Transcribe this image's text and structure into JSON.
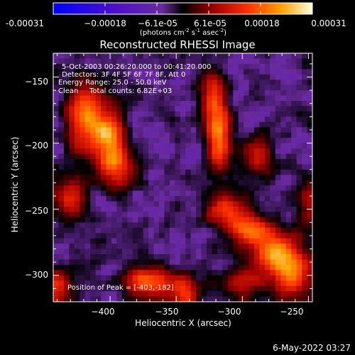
{
  "chart_data": {
    "type": "heatmap",
    "title": "Reconstructed RHESSI Image",
    "xlabel": "Heliocentric X (arcsec)",
    "ylabel": "Heliocentric Y (arcsec)",
    "xlim": [
      -443,
      -247
    ],
    "ylim": [
      -320,
      -132
    ],
    "xticks": [
      -400,
      -350,
      -300,
      -250
    ],
    "yticks": [
      -150,
      -200,
      -250,
      -300
    ],
    "xtick_labels": [
      "−400",
      "−350",
      "−300",
      "−250"
    ],
    "ytick_labels": [
      "−150",
      "−200",
      "−250",
      "−300"
    ],
    "colorbar": {
      "min": -0.00031,
      "max": 0.00031,
      "tick_labels": [
        "-0.00031",
        "−0.00018",
        "−6.1e-05",
        "6.1e-05",
        "0.00018",
        "0.00031"
      ],
      "units_label": "(photons cm",
      "units_exp1": "-2",
      "units_mid": " s",
      "units_exp2": "-1",
      "units_mid2": " asec",
      "units_exp3": "-2",
      "units_end": ")"
    },
    "annotations": {
      "line1": "5-Oct-2003 00:26:20.000 to 00:41:20.000",
      "line2": "Detectors: 3F 4F 5F 6F 7F 8F, Att 0",
      "line3": "Energy Range: 25.0 - 50.0 keV",
      "line4_a": "Clean",
      "line4_b": "Total counts: 6.82E+03",
      "peak": "Position of Peak = [-403,-182]"
    },
    "features": [
      {
        "x": -418,
        "y": -180,
        "amp": 0.00026,
        "sx": 10,
        "sy": 18
      },
      {
        "x": -400,
        "y": -195,
        "amp": 0.00028,
        "sx": 7,
        "sy": 12
      },
      {
        "x": -395,
        "y": -220,
        "amp": 0.00022,
        "sx": 9,
        "sy": 10
      },
      {
        "x": -430,
        "y": -240,
        "amp": 0.00016,
        "sx": 8,
        "sy": 12
      },
      {
        "x": -438,
        "y": -310,
        "amp": 0.0002,
        "sx": 6,
        "sy": 10
      },
      {
        "x": -370,
        "y": -305,
        "amp": 0.00024,
        "sx": 14,
        "sy": 8
      },
      {
        "x": -342,
        "y": -312,
        "amp": 0.00018,
        "sx": 8,
        "sy": 8
      },
      {
        "x": -318,
        "y": -195,
        "amp": 0.0003,
        "sx": 6,
        "sy": 16
      },
      {
        "x": -322,
        "y": -165,
        "amp": 0.0002,
        "sx": 6,
        "sy": 12
      },
      {
        "x": -312,
        "y": -250,
        "amp": 0.00022,
        "sx": 10,
        "sy": 8
      },
      {
        "x": -295,
        "y": -265,
        "amp": 0.00024,
        "sx": 10,
        "sy": 8
      },
      {
        "x": -275,
        "y": -282,
        "amp": 0.00026,
        "sx": 12,
        "sy": 10
      },
      {
        "x": -262,
        "y": -300,
        "amp": 0.00025,
        "sx": 10,
        "sy": 12
      },
      {
        "x": -288,
        "y": -210,
        "amp": 0.00018,
        "sx": 7,
        "sy": 10
      },
      {
        "x": -300,
        "y": -305,
        "amp": 0.00016,
        "sx": 12,
        "sy": 8
      },
      {
        "x": -250,
        "y": -245,
        "amp": 0.00016,
        "sx": 6,
        "sy": 12
      }
    ]
  },
  "footer": {
    "date": "6-May-2022 03:27"
  }
}
